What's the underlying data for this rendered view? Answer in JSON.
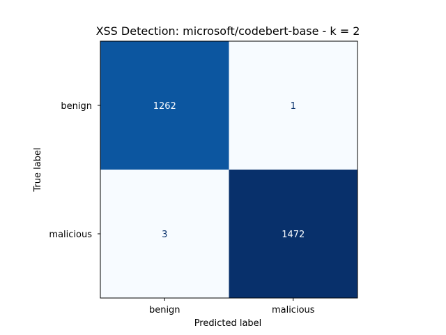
{
  "chart_data": {
    "type": "heatmap",
    "title": "XSS Detection: microsoft/codebert-base - k = 2",
    "xlabel": "Predicted label",
    "ylabel": "True label",
    "x_categories": [
      "benign",
      "malicious"
    ],
    "y_categories": [
      "benign",
      "malicious"
    ],
    "values": [
      [
        1262,
        1
      ],
      [
        3,
        1472
      ]
    ],
    "colormap": "Blues",
    "colorbar": false,
    "colors": {
      "low": "#f7fbff",
      "high": "#08306b",
      "text_on_dark": "#f7fbff",
      "text_on_light": "#08306b"
    }
  }
}
